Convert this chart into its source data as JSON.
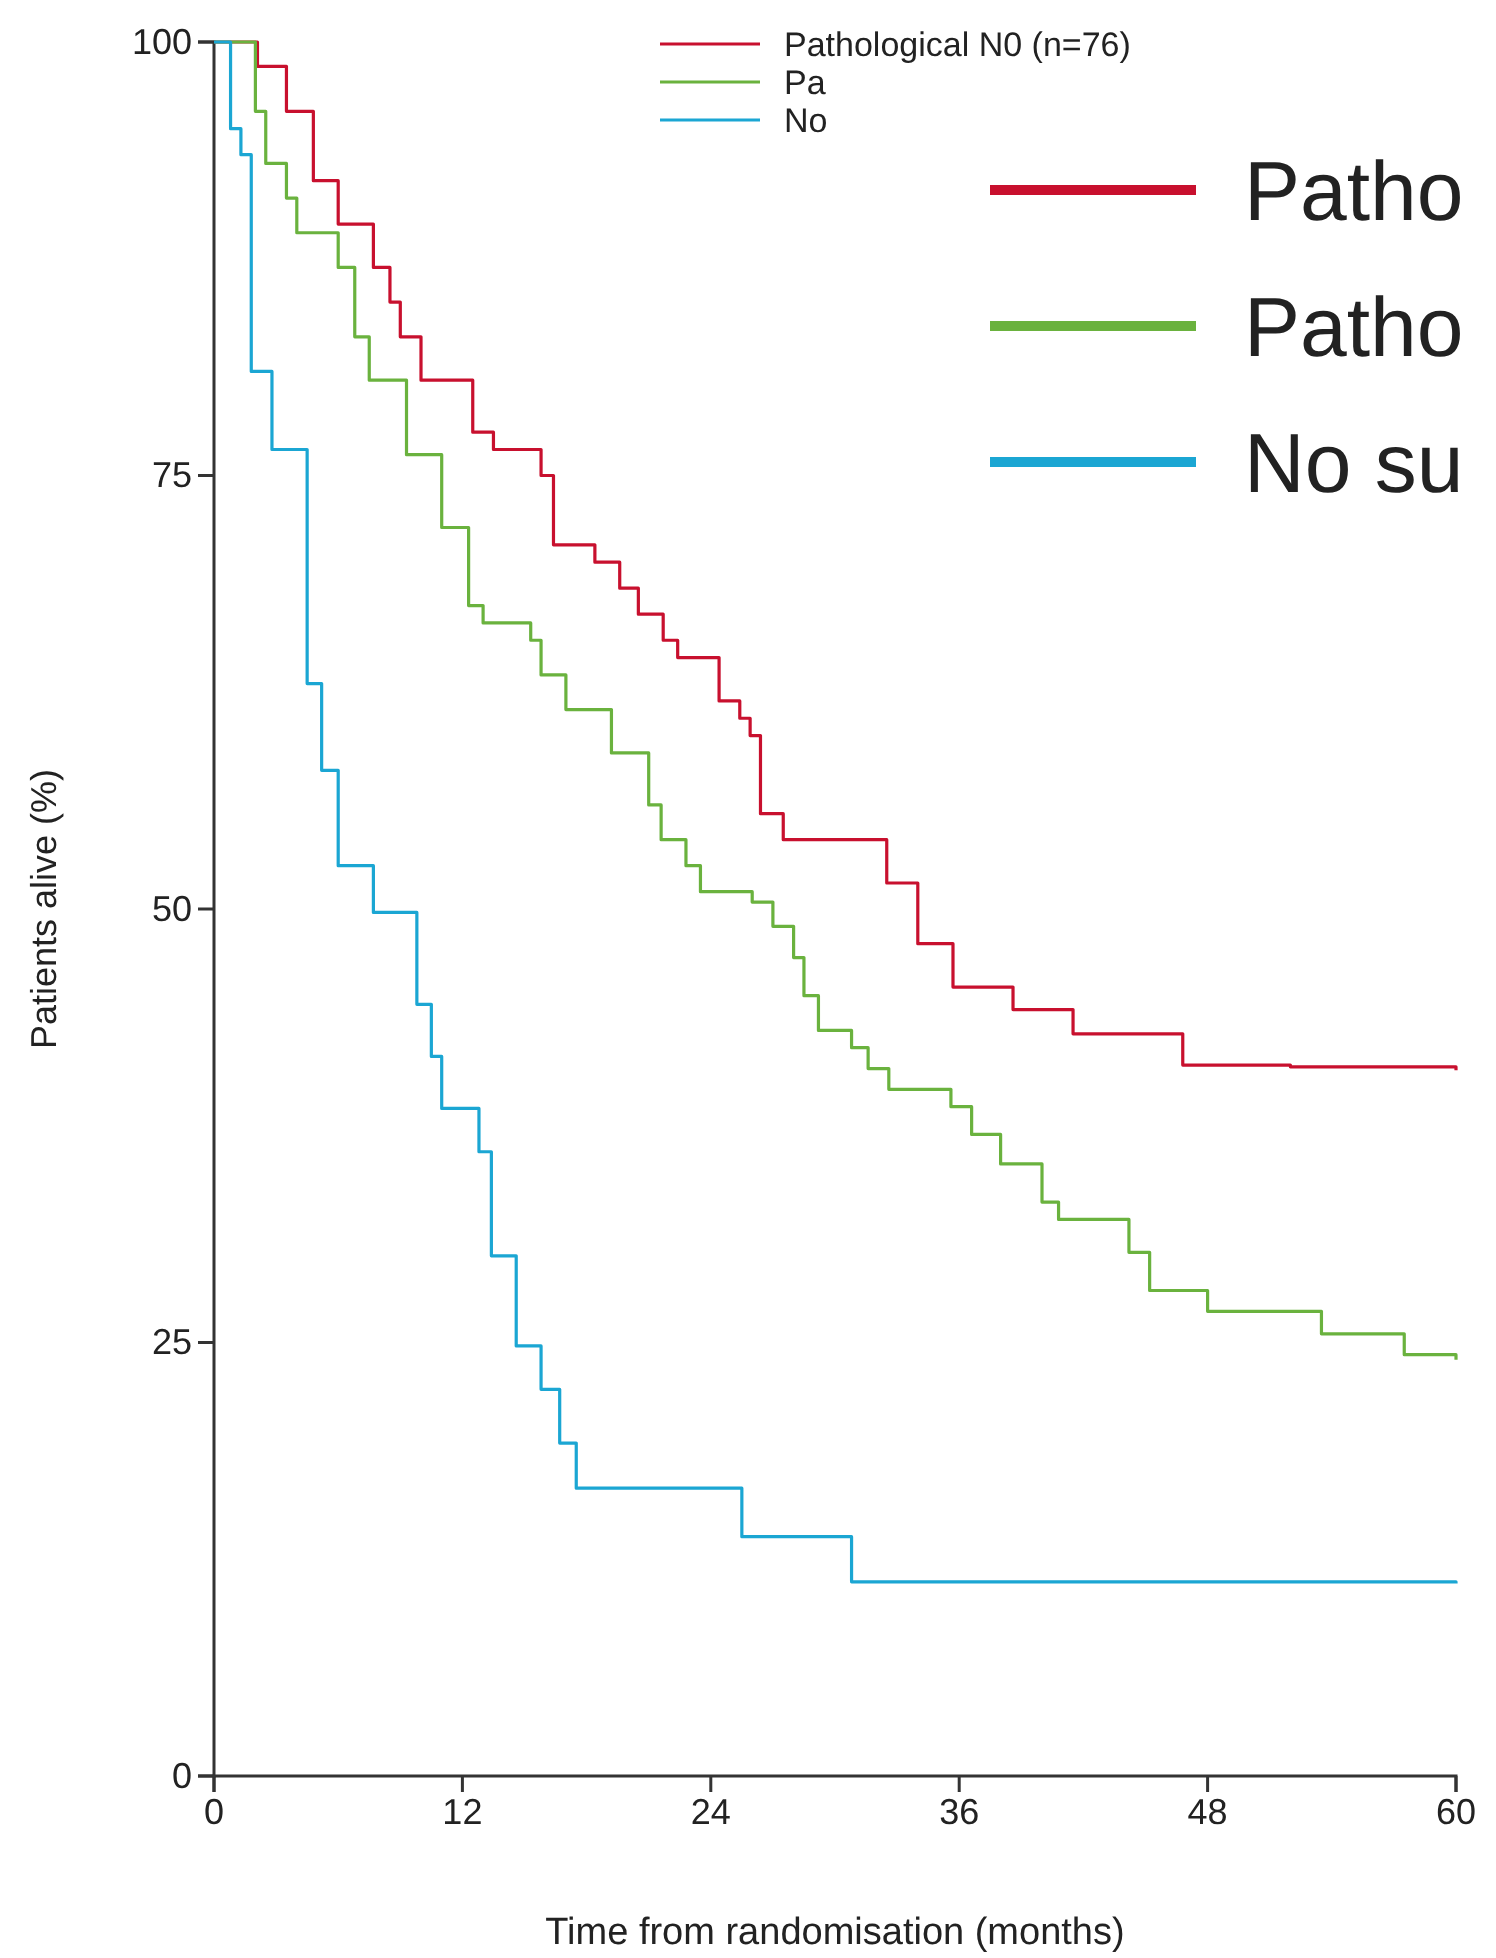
{
  "chart_data": {
    "type": "step",
    "xlabel": "Time from randomisation (months)",
    "ylabel": "Patients alive (%)",
    "xlim": [
      0,
      60
    ],
    "xticks": [
      0,
      12,
      24,
      36,
      48,
      60
    ],
    "ylim": [
      0,
      100
    ],
    "yticks": [
      0,
      25,
      50,
      75,
      100
    ],
    "legend": "top right",
    "grid": false,
    "line_style": "solid",
    "marker": "none",
    "annotations": [
      "Patho",
      "Patho",
      "No su"
    ],
    "series": [
      {
        "name": "Pathological N0 (n=76)",
        "color": "#c8102e",
        "x": [
          0,
          2.1,
          3.5,
          4.8,
          6,
          7.7,
          8.5,
          9,
          10,
          12.5,
          13.5,
          15.8,
          16.4,
          18.4,
          19.6,
          20.5,
          21.7,
          22.4,
          24.4,
          25.4,
          25.9,
          26.4,
          27.5,
          32.5,
          34,
          35.7,
          38.6,
          41.5,
          46.8,
          52,
          60
        ],
        "values": [
          100,
          98.6,
          96,
          92,
          89.5,
          87,
          85,
          83,
          80.5,
          77.5,
          76.5,
          75,
          71,
          70,
          68.5,
          67,
          65.5,
          64.5,
          62,
          61,
          60,
          55.5,
          54,
          51.5,
          48,
          45.5,
          44.2,
          42.8,
          41,
          40.9,
          40.7
        ]
      },
      {
        "name": "Pa",
        "color": "#6ab23e",
        "x": [
          0,
          2,
          2.5,
          3.5,
          4,
          6,
          6.8,
          7.5,
          9.3,
          11,
          12.3,
          13,
          15.3,
          15.8,
          17,
          19.2,
          21,
          21.6,
          22.8,
          23.5,
          26,
          27,
          28,
          28.5,
          29.2,
          30.8,
          31.6,
          32.6,
          35.6,
          36.6,
          38,
          40,
          40.8,
          44.2,
          45.2,
          48,
          53.5,
          57.5,
          60
        ],
        "values": [
          100,
          96,
          93,
          91,
          89,
          87,
          83,
          80.5,
          76.2,
          72,
          67.5,
          66.5,
          65.5,
          63.5,
          61.5,
          59,
          56,
          54,
          52.5,
          51,
          50.4,
          49,
          47.2,
          45,
          43,
          42,
          40.8,
          39.6,
          38.6,
          37,
          35.3,
          33.1,
          32.1,
          30.2,
          28,
          26.8,
          25.5,
          24.3,
          24
        ]
      },
      {
        "name": "No",
        "color": "#1ba6d3",
        "x": [
          0,
          0.8,
          1.3,
          1.8,
          2.8,
          4.5,
          5.2,
          6,
          7.7,
          9.8,
          10.5,
          11,
          12.8,
          13.4,
          14.6,
          15.8,
          16.7,
          17.5,
          25.5,
          30.8,
          60
        ],
        "values": [
          100,
          95,
          93.5,
          81,
          76.5,
          63,
          58,
          52.5,
          49.8,
          44.5,
          41.5,
          38.5,
          36,
          30,
          24.8,
          22.3,
          19.2,
          16.6,
          13.8,
          11.2,
          11.1
        ]
      }
    ]
  }
}
